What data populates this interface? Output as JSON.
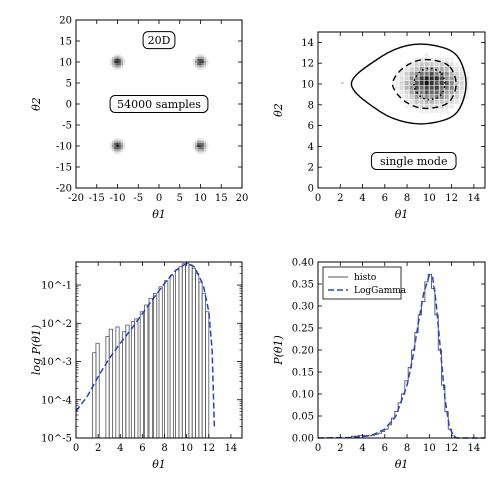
{
  "chart_data": [
    {
      "type": "heatmap",
      "panel": "top-left",
      "xlabel": "θ1",
      "ylabel": "θ2",
      "xlim": [
        -20,
        20
      ],
      "ylim": [
        -20,
        20
      ],
      "xticks": [
        -20,
        -15,
        -10,
        -5,
        0,
        5,
        10,
        15,
        20
      ],
      "yticks": [
        -20,
        -15,
        -10,
        -5,
        0,
        5,
        10,
        15,
        20
      ],
      "annotations": [
        "20D",
        "54000 samples"
      ],
      "modes": [
        {
          "x": -10,
          "y": 10,
          "intensity": 1.0
        },
        {
          "x": 10,
          "y": 10,
          "intensity": 1.0
        },
        {
          "x": -10,
          "y": -10,
          "intensity": 1.0
        },
        {
          "x": 10,
          "y": -10,
          "intensity": 1.0
        }
      ]
    },
    {
      "type": "heatmap",
      "panel": "top-right",
      "xlabel": "θ1",
      "ylabel": "θ2",
      "xlim": [
        0,
        15
      ],
      "ylim": [
        0,
        15
      ],
      "xticks": [
        0,
        2,
        4,
        6,
        8,
        10,
        12,
        14
      ],
      "yticks": [
        0,
        2,
        4,
        6,
        8,
        10,
        12,
        14
      ],
      "annotations": [
        "single mode"
      ],
      "mode": {
        "x": 10,
        "y": 10
      },
      "contours": [
        {
          "style": "solid",
          "points": [
            [
              12.5,
              12.7
            ],
            [
              10.5,
              13.7
            ],
            [
              8,
              13.7
            ],
            [
              5.5,
              12.5
            ],
            [
              3,
              10
            ],
            [
              5.5,
              7.4
            ],
            [
              8,
              6.3
            ],
            [
              10.5,
              6.3
            ],
            [
              12.5,
              7.3
            ],
            [
              13.3,
              10
            ]
          ]
        },
        {
          "style": "dashed",
          "points": [
            [
              11.8,
              11.7
            ],
            [
              10.3,
              12.3
            ],
            [
              8.8,
              12.2
            ],
            [
              7.4,
              11.3
            ],
            [
              6.7,
              10
            ],
            [
              7.4,
              8.7
            ],
            [
              8.8,
              7.8
            ],
            [
              10.3,
              7.7
            ],
            [
              11.8,
              8.3
            ],
            [
              12.4,
              10
            ]
          ]
        },
        {
          "style": "dotted",
          "points": [
            [
              11,
              11.1
            ],
            [
              10,
              11.5
            ],
            [
              9.1,
              11.1
            ],
            [
              8.6,
              10
            ],
            [
              9.1,
              8.9
            ],
            [
              10,
              8.5
            ],
            [
              11,
              8.9
            ],
            [
              11.4,
              10
            ]
          ]
        }
      ]
    },
    {
      "type": "line",
      "panel": "bottom-left",
      "xlabel": "θ1",
      "ylabel": "log P(θ1)",
      "xlim": [
        0,
        15
      ],
      "ylim": [
        1e-05,
        0.4
      ],
      "yscale": "log",
      "xticks": [
        0,
        2,
        4,
        6,
        8,
        10,
        12,
        14
      ],
      "ytick_labels": [
        "10^-5",
        "10^-4",
        "10^-3",
        "10^-2",
        "10^-1"
      ],
      "series": [
        {
          "values": [
            [
              0,
              5e-05
            ],
            [
              1,
              0.00012
            ],
            [
              2,
              0.0004
            ],
            [
              3,
              0.0012
            ],
            [
              4,
              0.003
            ],
            [
              5,
              0.007
            ],
            [
              6,
              0.018
            ],
            [
              7,
              0.045
            ],
            [
              8,
              0.11
            ],
            [
              9,
              0.24
            ],
            [
              10,
              0.37
            ],
            [
              10.7,
              0.3
            ],
            [
              11.5,
              0.1
            ],
            [
              12,
              0.02
            ],
            [
              12.3,
              0.002
            ],
            [
              12.5,
              2e-05
            ]
          ]
        }
      ],
      "histogram": [
        {
          "x0": 1.5,
          "x1": 1.8,
          "y": 0.0017
        },
        {
          "x0": 1.8,
          "x1": 2.1,
          "y": 0.003
        },
        {
          "x0": 2.7,
          "x1": 3.0,
          "y": 0.0045
        },
        {
          "x0": 3.0,
          "x1": 3.3,
          "y": 0.007
        },
        {
          "x0": 3.6,
          "x1": 3.9,
          "y": 0.008
        },
        {
          "x0": 4.2,
          "x1": 4.5,
          "y": 0.006
        },
        {
          "x0": 4.5,
          "x1": 4.8,
          "y": 0.009
        },
        {
          "x0": 5.0,
          "x1": 5.3,
          "y": 0.011
        },
        {
          "x0": 5.3,
          "x1": 5.6,
          "y": 0.013
        },
        {
          "x0": 5.8,
          "x1": 6.1,
          "y": 0.02
        },
        {
          "x0": 6.2,
          "x1": 6.5,
          "y": 0.03
        },
        {
          "x0": 6.6,
          "x1": 6.9,
          "y": 0.045
        },
        {
          "x0": 7.0,
          "x1": 7.3,
          "y": 0.06
        },
        {
          "x0": 7.5,
          "x1": 7.8,
          "y": 0.09
        },
        {
          "x0": 8.0,
          "x1": 8.3,
          "y": 0.13
        },
        {
          "x0": 8.5,
          "x1": 8.8,
          "y": 0.18
        },
        {
          "x0": 9.0,
          "x1": 9.3,
          "y": 0.25
        },
        {
          "x0": 9.3,
          "x1": 9.6,
          "y": 0.3
        },
        {
          "x0": 9.6,
          "x1": 9.9,
          "y": 0.36
        },
        {
          "x0": 9.9,
          "x1": 10.2,
          "y": 0.37
        },
        {
          "x0": 10.2,
          "x1": 10.5,
          "y": 0.34
        },
        {
          "x0": 10.5,
          "x1": 10.8,
          "y": 0.27
        },
        {
          "x0": 10.8,
          "x1": 11.1,
          "y": 0.2
        },
        {
          "x0": 11.1,
          "x1": 11.4,
          "y": 0.12
        },
        {
          "x0": 11.4,
          "x1": 11.7,
          "y": 0.06
        },
        {
          "x0": 11.7,
          "x1": 12.0,
          "y": 0.02
        }
      ]
    },
    {
      "type": "line",
      "panel": "bottom-right",
      "xlabel": "θ1",
      "ylabel": "P(θ1)",
      "xlim": [
        0,
        15
      ],
      "ylim": [
        0,
        0.4
      ],
      "xticks": [
        0,
        2,
        4,
        6,
        8,
        10,
        12,
        14
      ],
      "yticks": [
        0.0,
        0.05,
        0.1,
        0.15,
        0.2,
        0.25,
        0.3,
        0.35,
        0.4
      ],
      "ytick_labels": [
        "0.00",
        "0.05",
        "0.10",
        "0.15",
        "0.20",
        "0.25",
        "0.30",
        "0.35",
        "0.40"
      ],
      "legend": {
        "position": "top-left",
        "entries": [
          "histo",
          "LogGamma"
        ]
      },
      "series": [
        {
          "name": "histo",
          "values": [
            [
              3.0,
              0.004
            ],
            [
              3.3,
              0.004
            ],
            [
              3.6,
              0.006
            ],
            [
              3.9,
              0.006
            ],
            [
              4.2,
              0.004
            ],
            [
              4.5,
              0.005
            ],
            [
              4.8,
              0.006
            ],
            [
              5.1,
              0.008
            ],
            [
              5.4,
              0.011
            ],
            [
              5.7,
              0.015
            ],
            [
              6.0,
              0.02
            ],
            [
              6.3,
              0.03
            ],
            [
              6.6,
              0.045
            ],
            [
              6.9,
              0.06
            ],
            [
              7.2,
              0.08
            ],
            [
              7.5,
              0.1
            ],
            [
              7.8,
              0.13
            ],
            [
              8.1,
              0.16
            ],
            [
              8.4,
              0.2
            ],
            [
              8.7,
              0.24
            ],
            [
              9.0,
              0.28
            ],
            [
              9.3,
              0.31
            ],
            [
              9.6,
              0.355
            ],
            [
              9.9,
              0.372
            ],
            [
              10.2,
              0.34
            ],
            [
              10.5,
              0.28
            ],
            [
              10.8,
              0.2
            ],
            [
              11.1,
              0.12
            ],
            [
              11.4,
              0.06
            ],
            [
              11.7,
              0.02
            ],
            [
              12.0,
              0.005
            ],
            [
              12.3,
              0.0
            ]
          ]
        },
        {
          "name": "LogGamma",
          "values": [
            [
              0,
              0.0
            ],
            [
              3,
              0.001
            ],
            [
              4,
              0.003
            ],
            [
              5,
              0.008
            ],
            [
              6,
              0.02
            ],
            [
              7,
              0.05
            ],
            [
              8,
              0.12
            ],
            [
              8.5,
              0.18
            ],
            [
              9,
              0.26
            ],
            [
              9.5,
              0.33
            ],
            [
              10,
              0.37
            ],
            [
              10.3,
              0.365
            ],
            [
              10.6,
              0.31
            ],
            [
              11,
              0.2
            ],
            [
              11.4,
              0.09
            ],
            [
              11.8,
              0.025
            ],
            [
              12.2,
              0.003
            ],
            [
              12.5,
              0.0
            ],
            [
              15,
              0.0
            ]
          ]
        }
      ]
    }
  ]
}
